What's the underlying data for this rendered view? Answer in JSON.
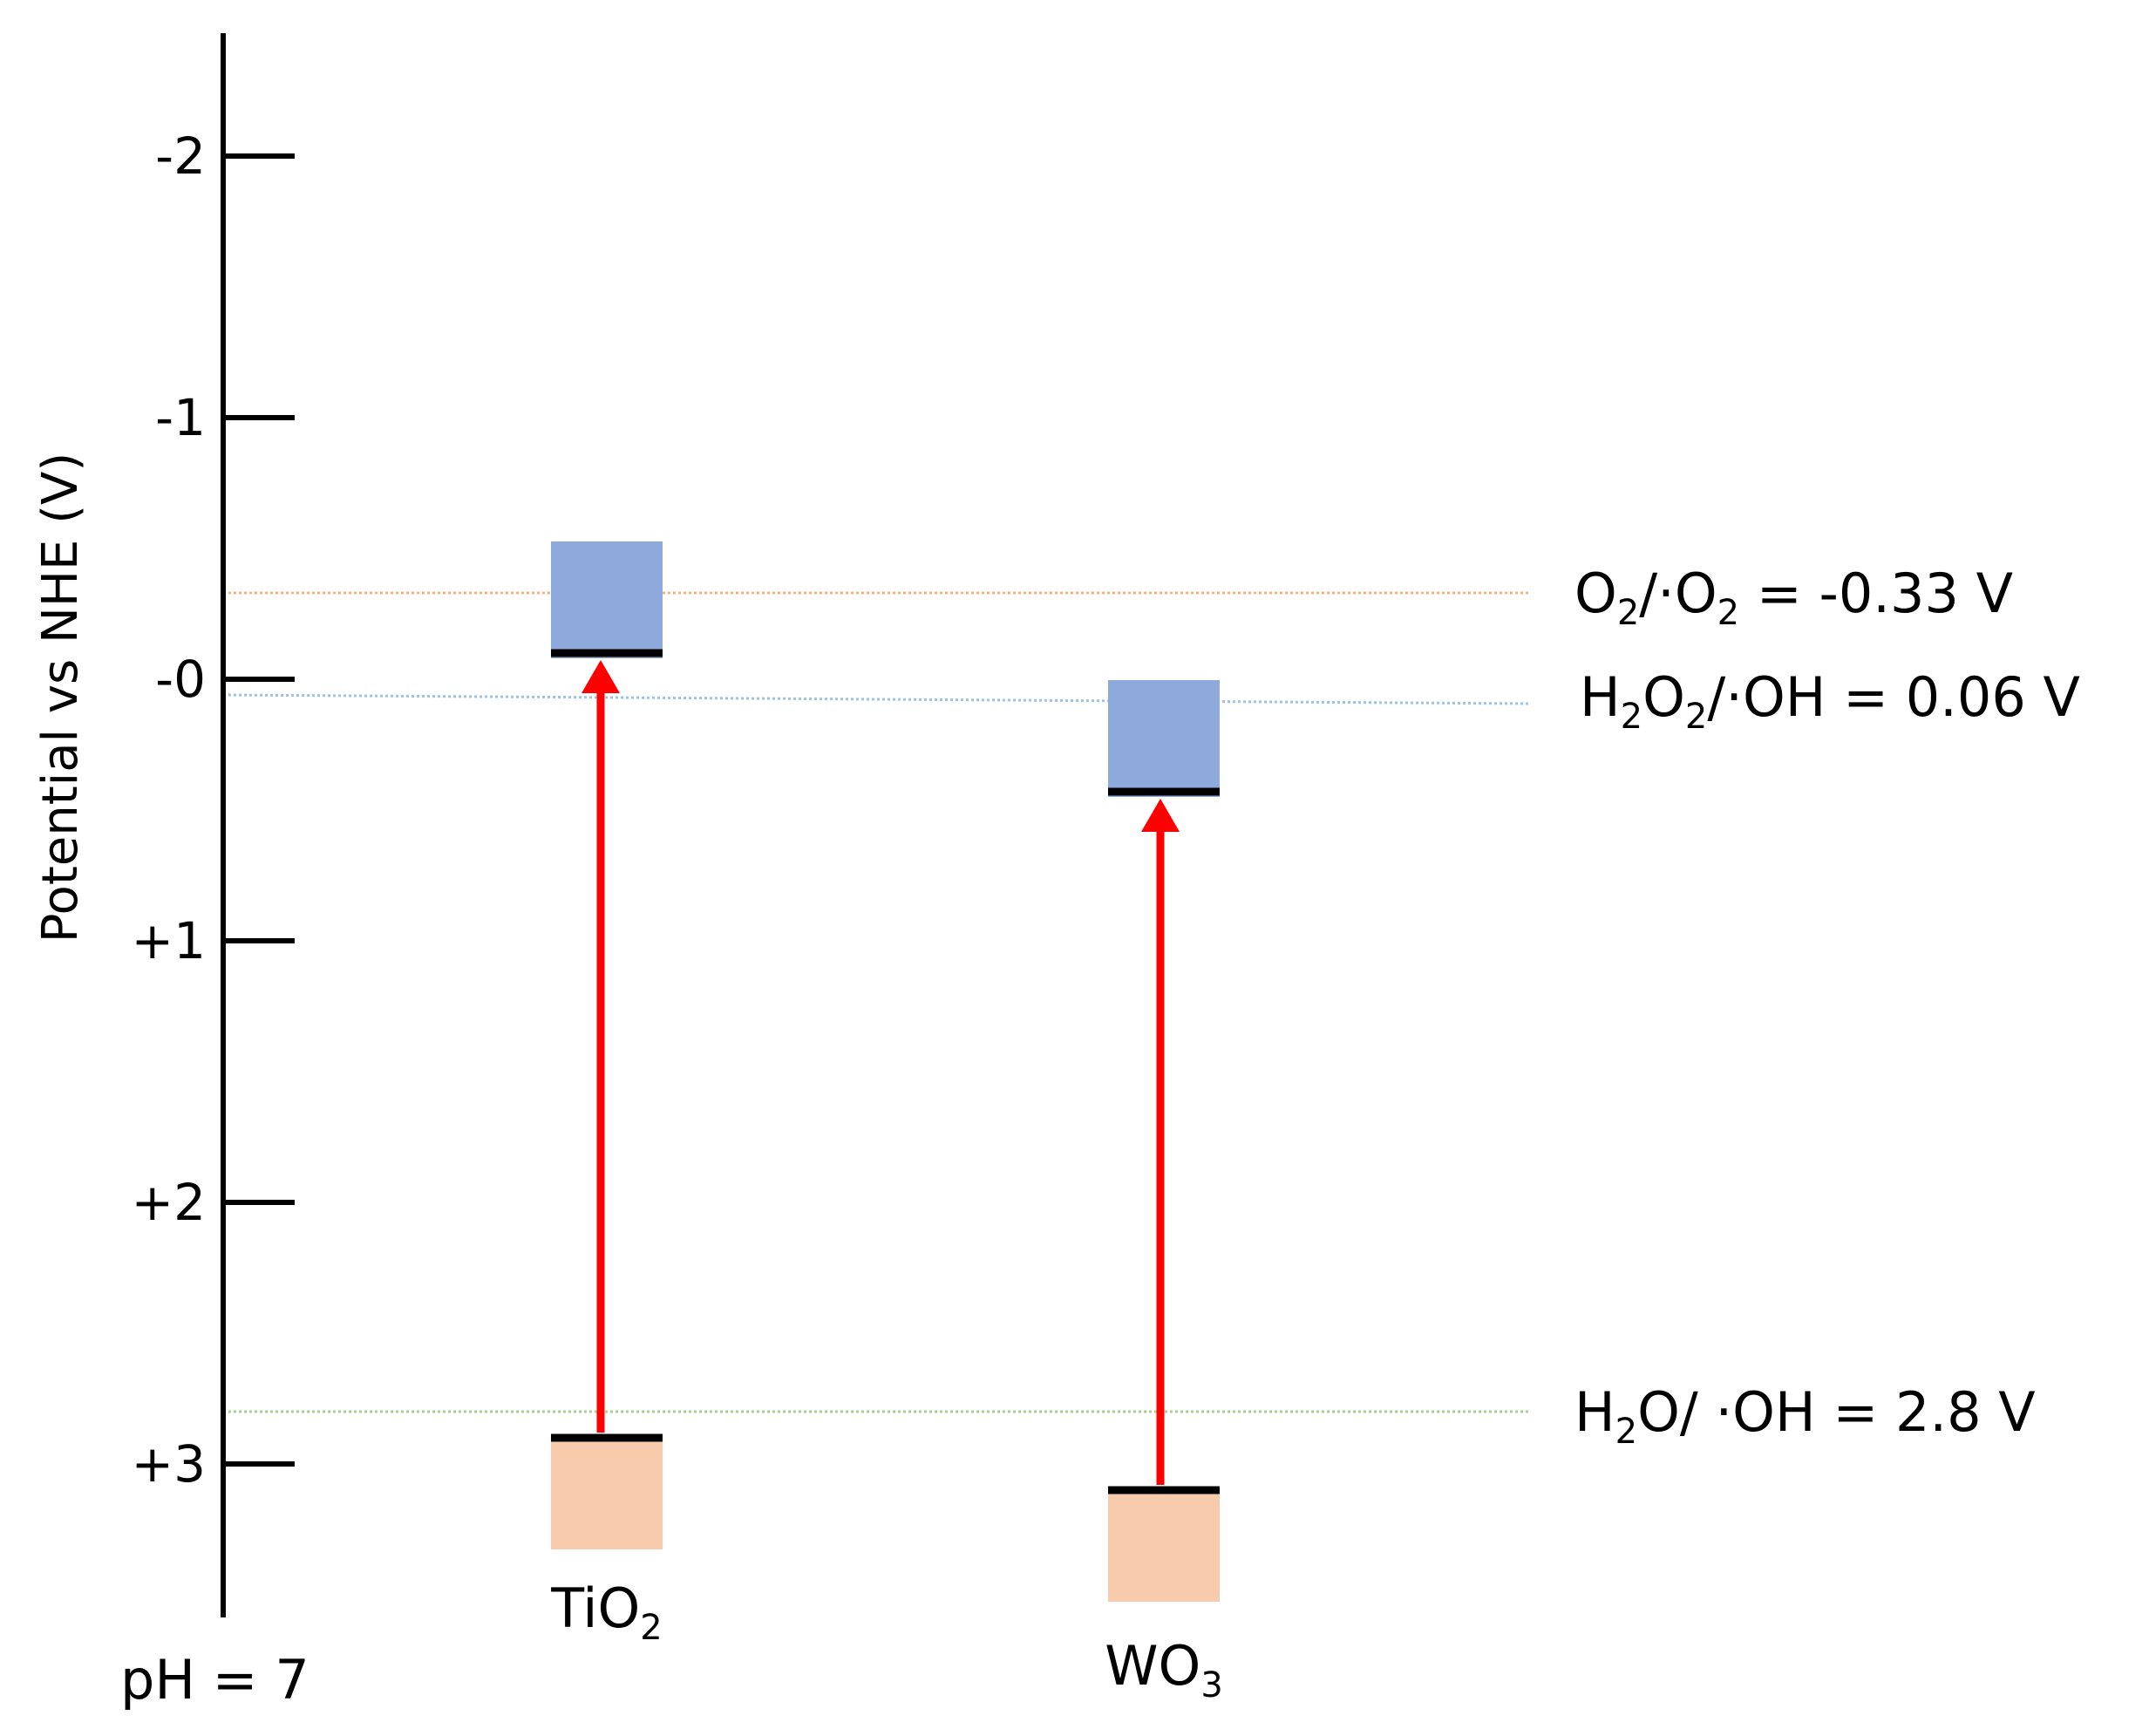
{
  "axis": {
    "title": "Potential vs NHE (V)",
    "ticks": [
      {
        "value": -2,
        "label": "-2"
      },
      {
        "value": -1,
        "label": "-1"
      },
      {
        "value": 0,
        "label": "-0"
      },
      {
        "value": 1,
        "label": "+1"
      },
      {
        "value": 2,
        "label": "+2"
      },
      {
        "value": 3,
        "label": "+3"
      }
    ]
  },
  "condition": "pH = 7",
  "materials": [
    {
      "name_main": "TiO",
      "name_sub": "2",
      "conduction_band": -0.1,
      "valence_band": 2.9,
      "cb_color": "#8ea9db",
      "vb_color": "#f8cbad"
    },
    {
      "name_main": "WO",
      "name_sub": "3",
      "conduction_band": 0.43,
      "valence_band": 3.1,
      "cb_color": "#8ea9db",
      "vb_color": "#f8cbad"
    }
  ],
  "reference_lines": [
    {
      "parts": [
        {
          "t": "O",
          "s": false
        },
        {
          "t": "2",
          "s": true
        },
        {
          "t": "/·O",
          "s": false
        },
        {
          "t": "2",
          "s": true
        },
        {
          "t": " = -0.33 V",
          "s": false
        }
      ],
      "value": -0.33,
      "color": "#f4b183"
    },
    {
      "parts": [
        {
          "t": "H",
          "s": false
        },
        {
          "t": "2",
          "s": true
        },
        {
          "t": "O",
          "s": false
        },
        {
          "t": "2",
          "s": true
        },
        {
          "t": "/·OH = 0.06 V",
          "s": false
        }
      ],
      "value": 0.06,
      "color": "#9dc3e6"
    },
    {
      "parts": [
        {
          "t": "H",
          "s": false
        },
        {
          "t": "2",
          "s": true
        },
        {
          "t": "O/ ·OH = 2.8 V",
          "s": false
        }
      ],
      "value": 2.8,
      "color": "#a9d18e"
    }
  ],
  "arrow_color": "#ff0000"
}
